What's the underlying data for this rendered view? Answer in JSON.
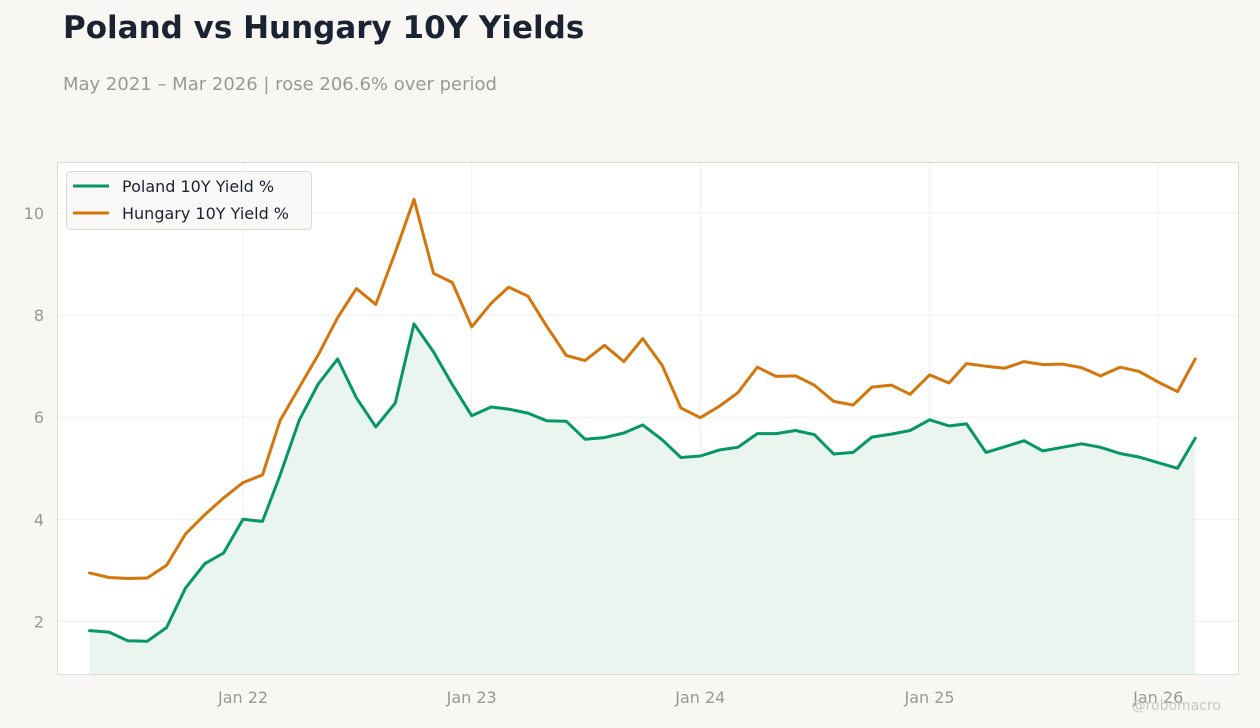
{
  "title": "Poland vs Hungary 10Y Yields",
  "subtitle": "May 2021 – Mar 2026 | rose 206.6% over period",
  "watermark": "@robomacro",
  "colors": {
    "background": "#f8f7f4",
    "plot_bg": "#ffffff",
    "poland": "#069668",
    "hungary": "#d4760b",
    "area_fill": "#eaf5f0",
    "grid": "#efefed",
    "axis_text": "#999893",
    "title": "#1b2333"
  },
  "chart_data": {
    "type": "line",
    "xlabel": "",
    "ylabel": "",
    "ylim": [
      0.95,
      11.0
    ],
    "xlim": [
      "2021-03-10",
      "2026-05-10"
    ],
    "yticks": [
      2,
      4,
      6,
      8,
      10
    ],
    "xticks": [
      {
        "label": "Jan 22",
        "date": "2022-01-01"
      },
      {
        "label": "Jan 23",
        "date": "2023-01-01"
      },
      {
        "label": "Jan 24",
        "date": "2024-01-01"
      },
      {
        "label": "Jan 25",
        "date": "2025-01-01"
      },
      {
        "label": "Jan 26",
        "date": "2026-01-01"
      }
    ],
    "grid": true,
    "legend_position": "top-left",
    "x": [
      "2021-05-01",
      "2021-06-01",
      "2021-07-01",
      "2021-08-01",
      "2021-09-01",
      "2021-10-01",
      "2021-11-01",
      "2021-12-01",
      "2022-01-01",
      "2022-02-01",
      "2022-03-01",
      "2022-04-01",
      "2022-05-01",
      "2022-06-01",
      "2022-07-01",
      "2022-08-01",
      "2022-09-01",
      "2022-10-01",
      "2022-11-01",
      "2022-12-01",
      "2023-01-01",
      "2023-02-01",
      "2023-03-01",
      "2023-04-01",
      "2023-05-01",
      "2023-06-01",
      "2023-07-01",
      "2023-08-01",
      "2023-09-01",
      "2023-10-01",
      "2023-11-01",
      "2023-12-01",
      "2024-01-01",
      "2024-02-01",
      "2024-03-01",
      "2024-04-01",
      "2024-05-01",
      "2024-06-01",
      "2024-07-01",
      "2024-08-01",
      "2024-09-01",
      "2024-10-01",
      "2024-11-01",
      "2024-12-01",
      "2025-01-01",
      "2025-02-01",
      "2025-03-01",
      "2025-04-01",
      "2025-05-01",
      "2025-06-01",
      "2025-07-01",
      "2025-08-01",
      "2025-09-01",
      "2025-10-01",
      "2025-11-01",
      "2025-12-01",
      "2026-01-01",
      "2026-02-01",
      "2026-03-01"
    ],
    "series": [
      {
        "name": "Poland 10Y Yield %",
        "color": "#069668",
        "fill": true,
        "values": [
          1.82,
          1.79,
          1.62,
          1.61,
          1.88,
          2.65,
          3.13,
          3.34,
          4.0,
          3.96,
          4.86,
          5.95,
          6.65,
          7.14,
          6.38,
          5.81,
          6.28,
          7.83,
          7.28,
          6.64,
          6.03,
          6.2,
          6.16,
          6.08,
          5.93,
          5.92,
          5.57,
          5.6,
          5.69,
          5.85,
          5.56,
          5.21,
          5.24,
          5.36,
          5.41,
          5.68,
          5.68,
          5.74,
          5.66,
          5.28,
          5.31,
          5.61,
          5.67,
          5.74,
          5.95,
          5.83,
          5.87,
          5.31,
          5.42,
          5.54,
          5.34,
          5.41,
          5.48,
          5.41,
          5.29,
          5.22,
          5.11,
          5.0,
          5.59
        ]
      },
      {
        "name": "Hungary 10Y Yield %",
        "color": "#d4760b",
        "fill": false,
        "values": [
          2.95,
          2.86,
          2.84,
          2.85,
          3.1,
          3.71,
          4.09,
          4.42,
          4.72,
          4.87,
          5.93,
          6.59,
          7.22,
          7.95,
          8.52,
          8.21,
          9.23,
          10.27,
          8.82,
          8.64,
          7.77,
          8.23,
          8.55,
          8.37,
          7.78,
          7.21,
          7.11,
          7.41,
          7.09,
          7.54,
          7.02,
          6.18,
          5.99,
          6.22,
          6.48,
          6.98,
          6.8,
          6.81,
          6.63,
          6.31,
          6.24,
          6.59,
          6.63,
          6.45,
          6.83,
          6.67,
          7.05,
          7.0,
          6.96,
          7.09,
          7.03,
          7.04,
          6.97,
          6.81,
          6.98,
          6.9,
          6.69,
          6.5,
          7.14
        ]
      }
    ]
  }
}
